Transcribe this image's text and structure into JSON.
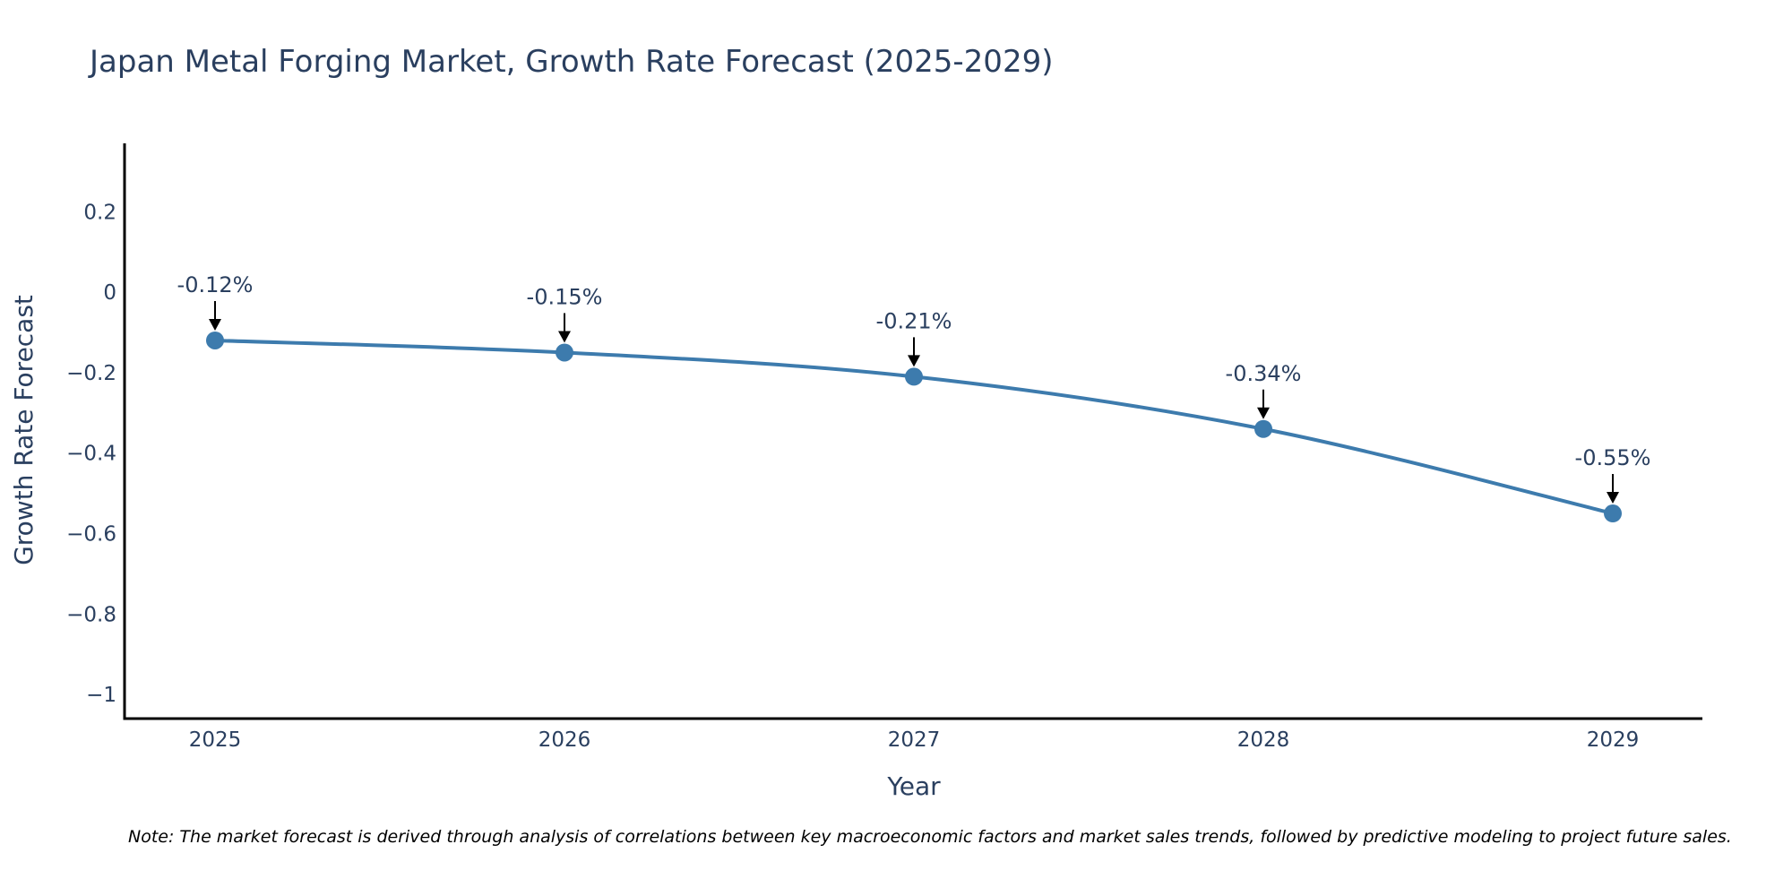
{
  "chart_data": {
    "type": "line",
    "title": "Japan Metal Forging Market, Growth Rate Forecast (2025-2029)",
    "xlabel": "Year",
    "ylabel": "Growth Rate Forecast",
    "x": [
      "2025",
      "2026",
      "2027",
      "2028",
      "2029"
    ],
    "values": [
      -0.12,
      -0.15,
      -0.21,
      -0.34,
      -0.55
    ],
    "data_labels": [
      "-0.12%",
      "-0.15%",
      "-0.21%",
      "-0.34%",
      "-0.55%"
    ],
    "ylim": [
      -1.06,
      0.37
    ],
    "yticks": [
      0.2,
      0,
      -0.2,
      -0.4,
      -0.6,
      -0.8,
      -1
    ],
    "ytick_labels": [
      "0.2",
      "0",
      "−0.2",
      "−0.4",
      "−0.6",
      "−0.8",
      "−1"
    ],
    "grid": false,
    "line_color": "#3d7bad",
    "note": "Note: The market forecast is derived through analysis of correlations between key macroeconomic factors and market sales trends, followed by predictive modeling to project future sales."
  }
}
